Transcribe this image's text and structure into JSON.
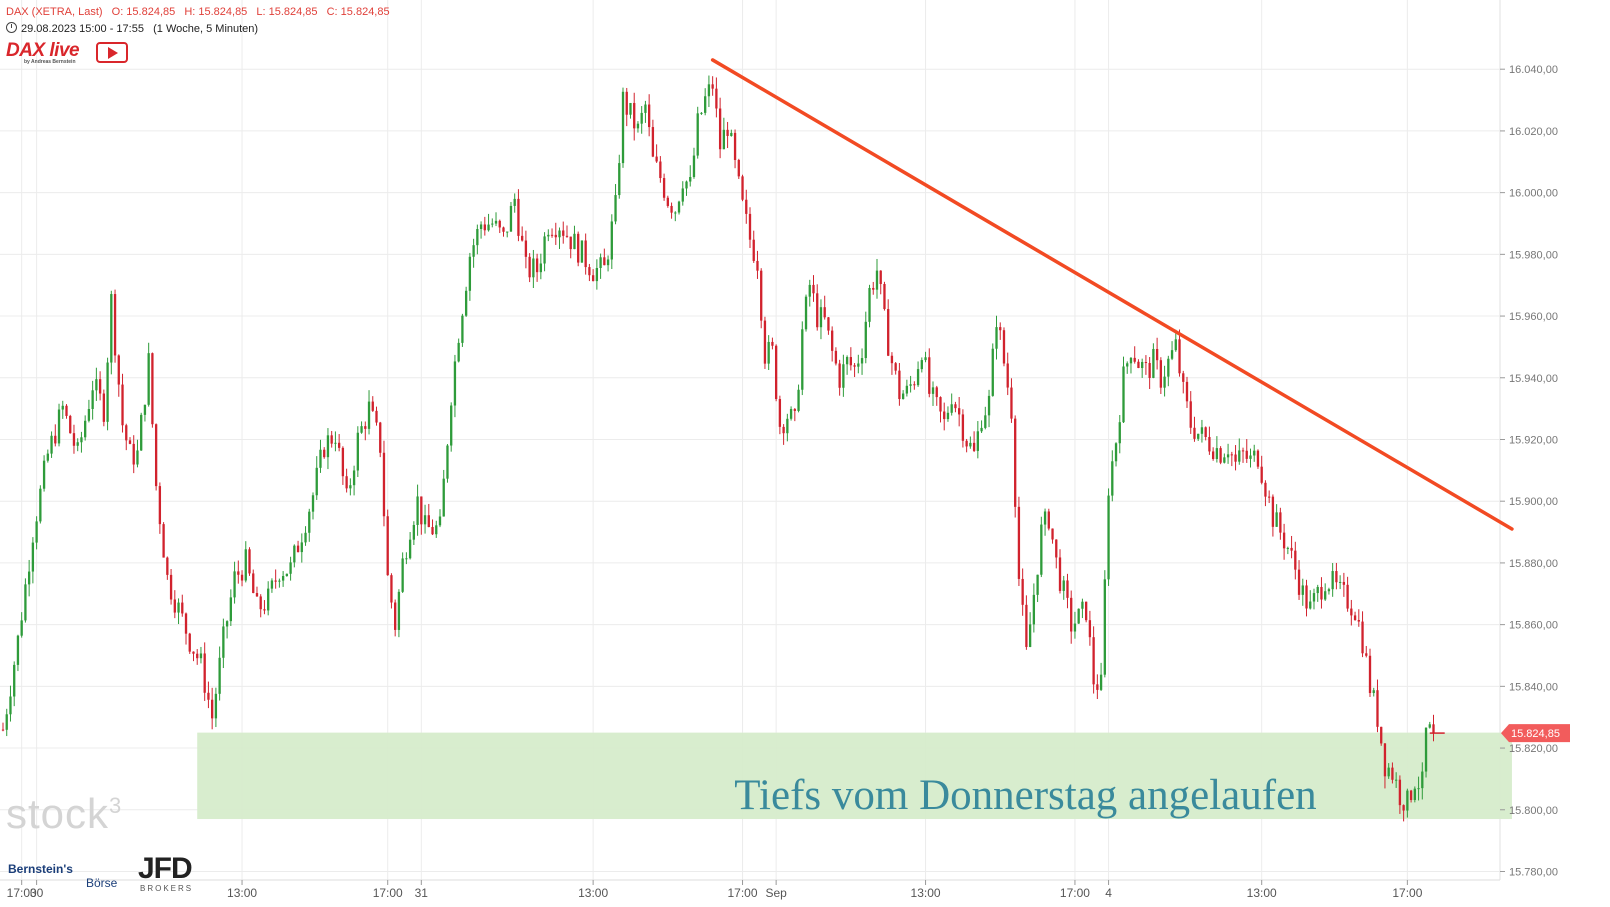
{
  "header": {
    "instrument": "DAX (XETRA, Last)",
    "open": "O: 15.824,85",
    "high": "H: 15.824,85",
    "low": "L: 15.824,85",
    "close": "C: 15.824,85",
    "time_range": "29.08.2023 15:00 - 17:55",
    "interval": "(1 Woche, 5 Minuten)"
  },
  "logos": {
    "dax_live": "DAX live",
    "dax_live_sub": "by Andreas Bernstein",
    "stock3": "stock",
    "stock3_sup": "3",
    "bernstein": "Bernstein's",
    "borse": "Börse",
    "jfd": "JFD",
    "jfd_sub": "BROKERS"
  },
  "colors": {
    "up": "#2e9b3a",
    "down": "#d1222d",
    "trendline": "#f24a23",
    "zone": "#d6eccb",
    "annotation": "#3a8a9c",
    "price_tag": "#f25c5c"
  },
  "chart_data": {
    "type": "candlestick",
    "title": "DAX (XETRA, Last)",
    "y_ticks": [
      "15.780,00",
      "15.800,00",
      "15.820,00",
      "15.840,00",
      "15.860,00",
      "15.880,00",
      "15.900,00",
      "15.920,00",
      "15.940,00",
      "15.960,00",
      "15.980,00",
      "16.000,00",
      "16.020,00",
      "16.040,00"
    ],
    "y_tick_values": [
      15780,
      15800,
      15820,
      15840,
      15860,
      15880,
      15900,
      15920,
      15940,
      15960,
      15980,
      16000,
      16020,
      16040
    ],
    "ylim": [
      15774,
      16054
    ],
    "x_ticks": [
      {
        "label": "17:00",
        "i": 5
      },
      {
        "label": "30",
        "i": 9
      },
      {
        "label": "13:00",
        "i": 64
      },
      {
        "label": "17:00",
        "i": 103
      },
      {
        "label": "31",
        "i": 112
      },
      {
        "label": "13:00",
        "i": 158
      },
      {
        "label": "17:00",
        "i": 198
      },
      {
        "label": "Sep",
        "i": 207
      },
      {
        "label": "13:00",
        "i": 247
      },
      {
        "label": "17:00",
        "i": 287
      },
      {
        "label": "4",
        "i": 296
      },
      {
        "label": "13:00",
        "i": 337
      },
      {
        "label": "17:00",
        "i": 376
      }
    ],
    "current_price": 15824.85,
    "current_price_label": "15.824,85",
    "x_index_range": [
      0,
      400
    ],
    "trendline": {
      "from": {
        "i": 190,
        "price": 16043
      },
      "to": {
        "i": 404,
        "price": 15891
      }
    },
    "zone": {
      "from_i": 52,
      "to_i": 404,
      "low": 15797,
      "high": 15825
    },
    "annotation": "Tiefs vom Donnerstag angelaufen",
    "closes": [
      {
        "i": 0,
        "c": 15826
      },
      {
        "i": 4,
        "c": 15855
      },
      {
        "i": 8,
        "c": 15890
      },
      {
        "i": 12,
        "c": 15915
      },
      {
        "i": 16,
        "c": 15930
      },
      {
        "i": 20,
        "c": 15915
      },
      {
        "i": 24,
        "c": 15938
      },
      {
        "i": 27,
        "c": 15930
      },
      {
        "i": 29,
        "c": 15965
      },
      {
        "i": 32,
        "c": 15925
      },
      {
        "i": 34,
        "c": 15915
      },
      {
        "i": 36,
        "c": 15915
      },
      {
        "i": 39,
        "c": 15945
      },
      {
        "i": 41,
        "c": 15905
      },
      {
        "i": 44,
        "c": 15875
      },
      {
        "i": 47,
        "c": 15865
      },
      {
        "i": 50,
        "c": 15855
      },
      {
        "i": 53,
        "c": 15847
      },
      {
        "i": 56,
        "c": 15830
      },
      {
        "i": 59,
        "c": 15855
      },
      {
        "i": 62,
        "c": 15875
      },
      {
        "i": 65,
        "c": 15880
      },
      {
        "i": 68,
        "c": 15865
      },
      {
        "i": 71,
        "c": 15868
      },
      {
        "i": 74,
        "c": 15878
      },
      {
        "i": 77,
        "c": 15878
      },
      {
        "i": 80,
        "c": 15890
      },
      {
        "i": 83,
        "c": 15902
      },
      {
        "i": 86,
        "c": 15918
      },
      {
        "i": 89,
        "c": 15922
      },
      {
        "i": 92,
        "c": 15900
      },
      {
        "i": 95,
        "c": 15920
      },
      {
        "i": 98,
        "c": 15930
      },
      {
        "i": 101,
        "c": 15918
      },
      {
        "i": 103,
        "c": 15875
      },
      {
        "i": 105,
        "c": 15860
      },
      {
        "i": 107,
        "c": 15880
      },
      {
        "i": 109,
        "c": 15892
      },
      {
        "i": 111,
        "c": 15900
      },
      {
        "i": 113,
        "c": 15891
      },
      {
        "i": 115,
        "c": 15891
      },
      {
        "i": 117,
        "c": 15891
      },
      {
        "i": 120,
        "c": 15935
      },
      {
        "i": 122,
        "c": 15955
      },
      {
        "i": 125,
        "c": 15980
      },
      {
        "i": 128,
        "c": 15990
      },
      {
        "i": 131,
        "c": 15990
      },
      {
        "i": 134,
        "c": 15985
      },
      {
        "i": 137,
        "c": 15998
      },
      {
        "i": 140,
        "c": 15975
      },
      {
        "i": 143,
        "c": 15975
      },
      {
        "i": 146,
        "c": 15990
      },
      {
        "i": 149,
        "c": 15990
      },
      {
        "i": 152,
        "c": 15985
      },
      {
        "i": 155,
        "c": 15980
      },
      {
        "i": 158,
        "c": 15975
      },
      {
        "i": 161,
        "c": 15975
      },
      {
        "i": 164,
        "c": 15995
      },
      {
        "i": 166,
        "c": 16030
      },
      {
        "i": 168,
        "c": 16025
      },
      {
        "i": 170,
        "c": 16020
      },
      {
        "i": 172,
        "c": 16028
      },
      {
        "i": 174,
        "c": 16010
      },
      {
        "i": 176,
        "c": 16005
      },
      {
        "i": 178,
        "c": 15998
      },
      {
        "i": 180,
        "c": 15995
      },
      {
        "i": 182,
        "c": 16005
      },
      {
        "i": 184,
        "c": 16002
      },
      {
        "i": 186,
        "c": 16022
      },
      {
        "i": 188,
        "c": 16030
      },
      {
        "i": 190,
        "c": 16035
      },
      {
        "i": 192,
        "c": 16015
      },
      {
        "i": 194,
        "c": 16022
      },
      {
        "i": 196,
        "c": 16008
      },
      {
        "i": 198,
        "c": 15995
      },
      {
        "i": 200,
        "c": 15985
      },
      {
        "i": 202,
        "c": 15978
      },
      {
        "i": 204,
        "c": 15948
      },
      {
        "i": 206,
        "c": 15948
      },
      {
        "i": 208,
        "c": 15925
      },
      {
        "i": 210,
        "c": 15928
      },
      {
        "i": 212,
        "c": 15925
      },
      {
        "i": 214,
        "c": 15955
      },
      {
        "i": 216,
        "c": 15970
      },
      {
        "i": 218,
        "c": 15960
      },
      {
        "i": 220,
        "c": 15958
      },
      {
        "i": 222,
        "c": 15948
      },
      {
        "i": 224,
        "c": 15940
      },
      {
        "i": 226,
        "c": 15945
      },
      {
        "i": 228,
        "c": 15943
      },
      {
        "i": 230,
        "c": 15950
      },
      {
        "i": 232,
        "c": 15968
      },
      {
        "i": 234,
        "c": 15975
      },
      {
        "i": 236,
        "c": 15958
      },
      {
        "i": 238,
        "c": 15945
      },
      {
        "i": 240,
        "c": 15935
      },
      {
        "i": 242,
        "c": 15935
      },
      {
        "i": 244,
        "c": 15940
      },
      {
        "i": 246,
        "c": 15950
      },
      {
        "i": 248,
        "c": 15935
      },
      {
        "i": 250,
        "c": 15930
      },
      {
        "i": 252,
        "c": 15925
      },
      {
        "i": 254,
        "c": 15935
      },
      {
        "i": 256,
        "c": 15928
      },
      {
        "i": 258,
        "c": 15920
      },
      {
        "i": 260,
        "c": 15915
      },
      {
        "i": 262,
        "c": 15928
      },
      {
        "i": 264,
        "c": 15932
      },
      {
        "i": 266,
        "c": 15960
      },
      {
        "i": 268,
        "c": 15945
      },
      {
        "i": 270,
        "c": 15930
      },
      {
        "i": 272,
        "c": 15875
      },
      {
        "i": 274,
        "c": 15850
      },
      {
        "i": 276,
        "c": 15870
      },
      {
        "i": 278,
        "c": 15890
      },
      {
        "i": 280,
        "c": 15895
      },
      {
        "i": 282,
        "c": 15880
      },
      {
        "i": 284,
        "c": 15870
      },
      {
        "i": 286,
        "c": 15860
      },
      {
        "i": 288,
        "c": 15862
      },
      {
        "i": 290,
        "c": 15865
      },
      {
        "i": 292,
        "c": 15842
      },
      {
        "i": 294,
        "c": 15840
      },
      {
        "i": 296,
        "c": 15905
      },
      {
        "i": 298,
        "c": 15920
      },
      {
        "i": 300,
        "c": 15940
      },
      {
        "i": 302,
        "c": 15950
      },
      {
        "i": 304,
        "c": 15945
      },
      {
        "i": 306,
        "c": 15942
      },
      {
        "i": 308,
        "c": 15945
      },
      {
        "i": 310,
        "c": 15940
      },
      {
        "i": 312,
        "c": 15945
      },
      {
        "i": 314,
        "c": 15950
      },
      {
        "i": 316,
        "c": 15935
      },
      {
        "i": 318,
        "c": 15925
      },
      {
        "i": 320,
        "c": 15922
      },
      {
        "i": 322,
        "c": 15920
      },
      {
        "i": 324,
        "c": 15918
      },
      {
        "i": 326,
        "c": 15916
      },
      {
        "i": 328,
        "c": 15918
      },
      {
        "i": 330,
        "c": 15912
      },
      {
        "i": 332,
        "c": 15915
      },
      {
        "i": 334,
        "c": 15913
      },
      {
        "i": 336,
        "c": 15915
      },
      {
        "i": 338,
        "c": 15905
      },
      {
        "i": 340,
        "c": 15895
      },
      {
        "i": 342,
        "c": 15890
      },
      {
        "i": 344,
        "c": 15885
      },
      {
        "i": 346,
        "c": 15878
      },
      {
        "i": 348,
        "c": 15870
      },
      {
        "i": 350,
        "c": 15865
      },
      {
        "i": 352,
        "c": 15870
      },
      {
        "i": 354,
        "c": 15875
      },
      {
        "i": 356,
        "c": 15873
      },
      {
        "i": 358,
        "c": 15870
      },
      {
        "i": 360,
        "c": 15868
      },
      {
        "i": 362,
        "c": 15865
      },
      {
        "i": 364,
        "c": 15855
      },
      {
        "i": 366,
        "c": 15840
      },
      {
        "i": 368,
        "c": 15830
      },
      {
        "i": 370,
        "c": 15815
      },
      {
        "i": 372,
        "c": 15812
      },
      {
        "i": 374,
        "c": 15805
      },
      {
        "i": 376,
        "c": 15802
      },
      {
        "i": 378,
        "c": 15810
      },
      {
        "i": 380,
        "c": 15808
      },
      {
        "i": 381,
        "c": 15824.85
      },
      {
        "i": 383,
        "c": 15824.85
      }
    ]
  }
}
